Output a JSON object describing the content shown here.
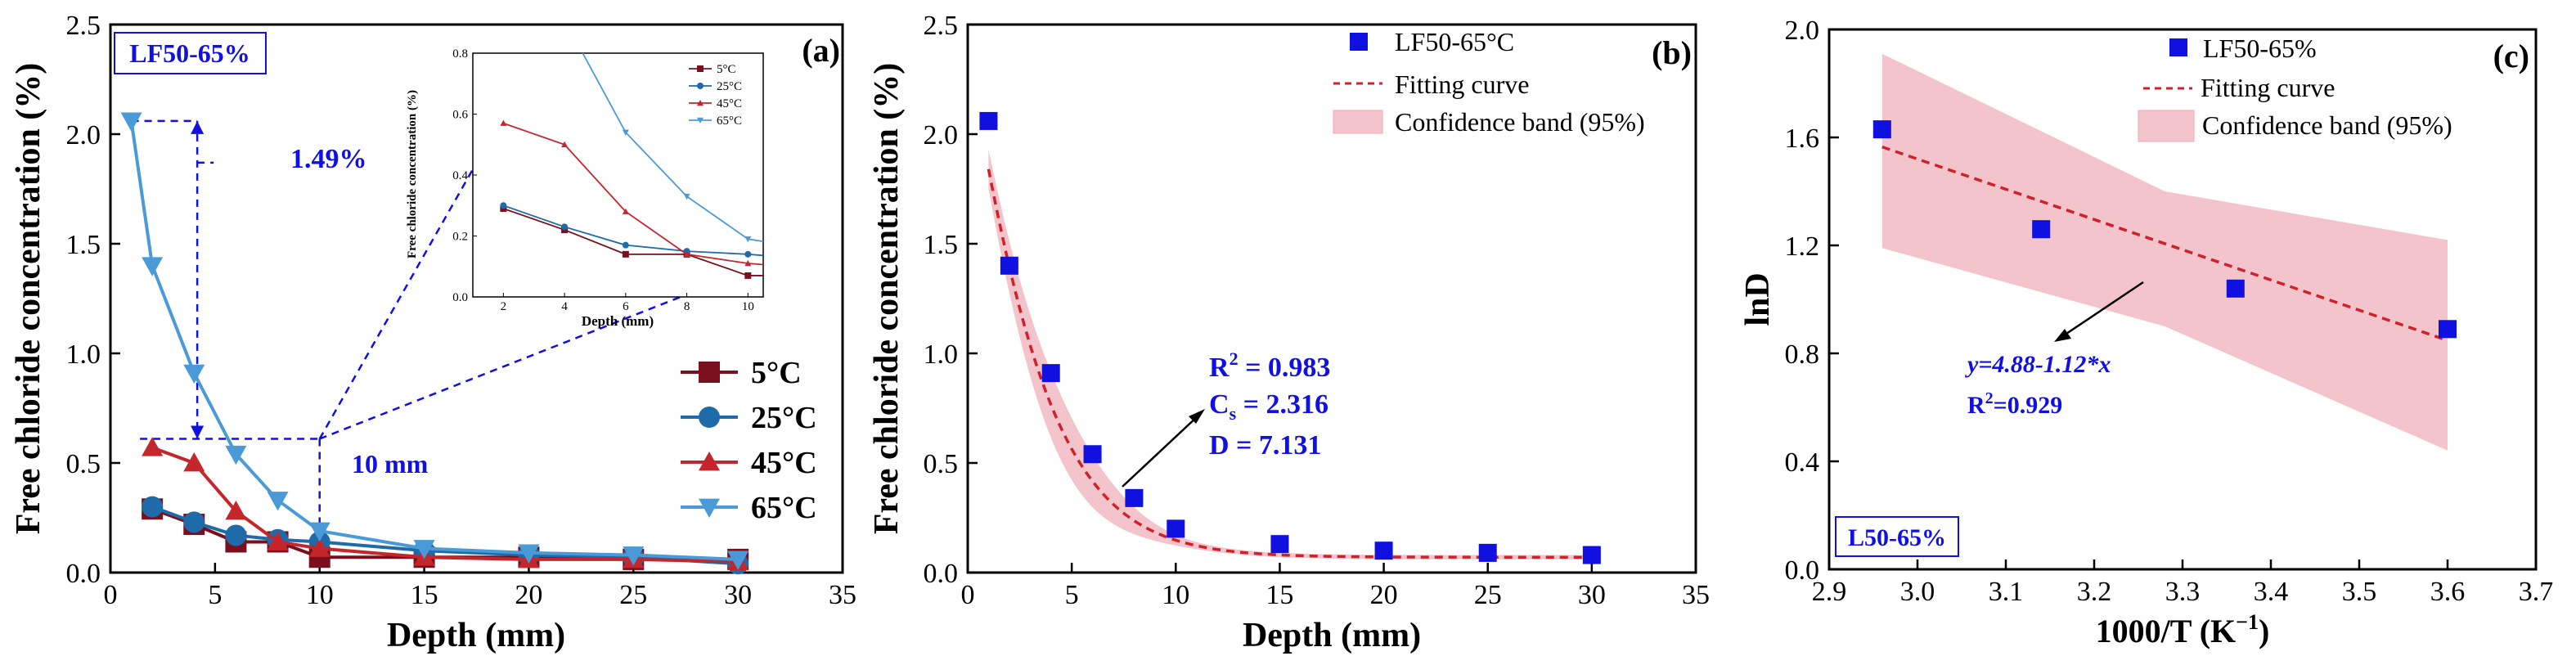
{
  "figure": {
    "panels": [
      "(a)",
      "(b)",
      "(c)"
    ]
  },
  "chart_data": [
    {
      "id": "a",
      "type": "line",
      "panel_label": "(a)",
      "tag": "LF50-65%",
      "xlabel": "Depth (mm)",
      "ylabel": "Free chloride concentration (%)",
      "xlim": [
        0,
        35
      ],
      "ylim": [
        0,
        2.5
      ],
      "xticks": [
        "0",
        "5",
        "10",
        "15",
        "20",
        "25",
        "30",
        "35"
      ],
      "yticks": [
        "0.0",
        "0.5",
        "1.0",
        "1.5",
        "2.0",
        "2.5"
      ],
      "series": [
        {
          "name": "5°C",
          "color": "#7a0f1e",
          "marker": "square",
          "x": [
            2,
            4,
            6,
            8,
            10,
            15,
            20,
            25,
            30
          ],
          "y": [
            0.29,
            0.22,
            0.14,
            0.14,
            0.07,
            0.07,
            0.07,
            0.06,
            0.06
          ]
        },
        {
          "name": "25°C",
          "color": "#1f6aa8",
          "marker": "circle",
          "x": [
            2,
            4,
            6,
            8,
            10,
            15,
            20,
            25,
            30
          ],
          "y": [
            0.3,
            0.23,
            0.17,
            0.15,
            0.14,
            0.1,
            0.08,
            0.07,
            0.04
          ]
        },
        {
          "name": "45°C",
          "color": "#c4262b",
          "marker": "triangle",
          "x": [
            2,
            4,
            6,
            8,
            10,
            15,
            20,
            25,
            30
          ],
          "y": [
            0.57,
            0.5,
            0.28,
            0.14,
            0.11,
            0.07,
            0.06,
            0.06,
            0.05
          ]
        },
        {
          "name": "65°C",
          "color": "#4a9ad8",
          "marker": "triangle-down",
          "x": [
            1,
            2,
            4,
            6,
            8,
            10,
            15,
            20,
            25,
            30
          ],
          "y": [
            2.06,
            1.4,
            0.91,
            0.54,
            0.33,
            0.19,
            0.11,
            0.09,
            0.08,
            0.06
          ]
        }
      ],
      "annotations": {
        "diff": "1.49%",
        "depth": "10 mm"
      },
      "inset": {
        "xlabel": "Depth (mm)",
        "ylabel": "Free chloride concentration (%)",
        "xlim": [
          1,
          10.5
        ],
        "ylim": [
          0,
          0.8
        ],
        "xticks": [
          "2",
          "4",
          "6",
          "8",
          "10"
        ],
        "yticks": [
          "0.0",
          "0.2",
          "0.4",
          "0.6",
          "0.8"
        ],
        "legend": [
          "5°C",
          "25°C",
          "45°C",
          "65°C"
        ]
      }
    },
    {
      "id": "b",
      "type": "scatter",
      "panel_label": "(b)",
      "xlabel": "Depth (mm)",
      "ylabel": "Free chloride concentration (%)",
      "xlim": [
        0,
        35
      ],
      "ylim": [
        0,
        2.5
      ],
      "xticks": [
        "0",
        "5",
        "10",
        "15",
        "20",
        "25",
        "30",
        "35"
      ],
      "yticks": [
        "0.0",
        "0.5",
        "1.0",
        "1.5",
        "2.0",
        "2.5"
      ],
      "points": {
        "name": "LF50-65°C",
        "color": "#1010e0",
        "x": [
          1,
          2,
          4,
          6,
          8,
          10,
          15,
          20,
          25,
          30
        ],
        "y": [
          2.06,
          1.4,
          0.91,
          0.54,
          0.34,
          0.2,
          0.13,
          0.1,
          0.09,
          0.08
        ]
      },
      "fit_label": "Fitting curve",
      "band_label": "Confidence band (95%)",
      "fit": {
        "cs": 2.316,
        "d": 7.131,
        "floor": 0.07
      },
      "stats": {
        "r2": "R",
        "r2_sup": "2",
        "r2_val": " = 0.983",
        "cs": "C",
        "cs_sub": "s",
        "cs_val": " = 2.316",
        "d": "D  = 7.131"
      }
    },
    {
      "id": "c",
      "type": "scatter",
      "panel_label": "(c)",
      "tag": "L50-65%",
      "xlabel": "1000/T (K",
      "xlabel_sup": "−1",
      "xlabel_end": ")",
      "ylabel": "lnD",
      "xlim": [
        2.9,
        3.7
      ],
      "ylim": [
        0.0,
        2.0
      ],
      "xticks": [
        "2.9",
        "3.0",
        "3.1",
        "3.2",
        "3.3",
        "3.4",
        "3.5",
        "3.6",
        "3.7"
      ],
      "yticks": [
        "0.0",
        "0.4",
        "0.8",
        "1.2",
        "1.6",
        "2.0"
      ],
      "points": {
        "name": "LF50-65%",
        "color": "#1010e0",
        "x": [
          2.96,
          3.14,
          3.36,
          3.6
        ],
        "y": [
          1.63,
          1.26,
          1.04,
          0.89
        ]
      },
      "fit_label": "Fitting curve",
      "band_label": "Confidence band (95%)",
      "line": {
        "intercept": 4.88,
        "slope": -1.12
      },
      "band": {
        "x": [
          2.96,
          3.28,
          3.6
        ],
        "lower": [
          1.19,
          0.9,
          0.44
        ],
        "upper": [
          1.91,
          1.4,
          1.22
        ]
      },
      "equation": "y=4.88-1.12*x",
      "r2": "R",
      "r2_sup": "2",
      "r2_val": "=0.929"
    }
  ]
}
